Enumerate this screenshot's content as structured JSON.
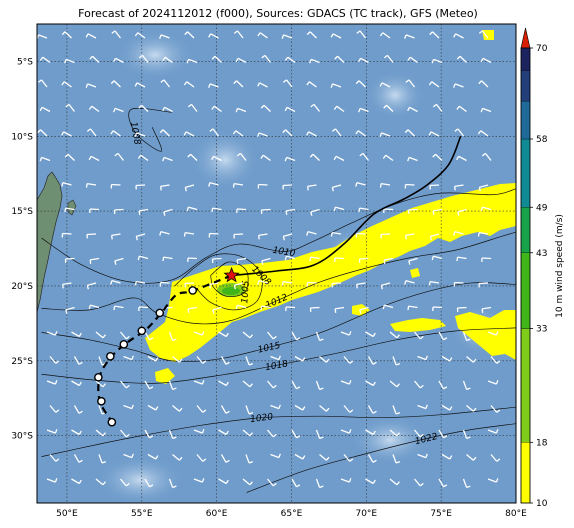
{
  "title": "Forecast of 2024112012 (f000), Sources: GDACS (TC track), GFS (Meteo)",
  "map": {
    "lon_range": [
      48,
      80
    ],
    "lat_range": [
      -34.5,
      -2.5
    ],
    "lon_ticks": [
      "50°E",
      "55°E",
      "60°E",
      "65°E",
      "70°E",
      "75°E",
      "80°E"
    ],
    "lat_ticks": [
      "5°S",
      "10°S",
      "15°S",
      "20°S",
      "25°S",
      "30°S"
    ],
    "ocean_color": "#6f9ccb",
    "land_color": "#6f8f72"
  },
  "isobars": [
    {
      "label": "1008",
      "points": [
        [
          57.0,
          -8.4
        ],
        [
          54.3,
          -8.2
        ],
        [
          54.6,
          -9.8
        ],
        [
          56.3,
          -11.0
        ],
        [
          55.7,
          -9.4
        ]
      ]
    },
    {
      "label": "1008",
      "points": [
        [
          57.2,
          -20.0
        ],
        [
          58.5,
          -18.8
        ],
        [
          60.0,
          -17.9
        ],
        [
          61.8,
          -18.1
        ],
        [
          63.0,
          -19.3
        ],
        [
          62.7,
          -21.0
        ],
        [
          61.2,
          -21.6
        ],
        [
          59.6,
          -21.1
        ],
        [
          58.6,
          -20.1
        ]
      ]
    },
    {
      "label": "1005",
      "points": [
        [
          59.6,
          -19.3
        ],
        [
          60.8,
          -18.4
        ],
        [
          62.0,
          -19.0
        ],
        [
          61.9,
          -20.4
        ],
        [
          60.7,
          -20.7
        ],
        [
          59.8,
          -20.1
        ],
        [
          59.6,
          -19.3
        ]
      ]
    },
    {
      "label": "1010",
      "points": [
        [
          48.3,
          -16.8
        ],
        [
          51.0,
          -18.6
        ],
        [
          54.0,
          -19.7
        ],
        [
          57.0,
          -19.6
        ],
        [
          59.3,
          -18.1
        ],
        [
          61.5,
          -17.2
        ],
        [
          64.5,
          -17.7
        ],
        [
          66.5,
          -17.0
        ],
        [
          69.0,
          -15.8
        ],
        [
          72.0,
          -14.5
        ],
        [
          75.0,
          -13.8
        ],
        [
          78.5,
          -13.9
        ],
        [
          80.0,
          -13.5
        ]
      ]
    },
    {
      "label": "1012",
      "points": [
        [
          48.3,
          -21.5
        ],
        [
          51.5,
          -21.6
        ],
        [
          54.5,
          -20.8
        ],
        [
          56.0,
          -21.8
        ],
        [
          58.5,
          -22.5
        ],
        [
          61.0,
          -22.3
        ],
        [
          64.0,
          -21.0
        ],
        [
          67.0,
          -19.7
        ],
        [
          70.0,
          -18.8
        ],
        [
          73.0,
          -18.1
        ],
        [
          76.0,
          -17.6
        ],
        [
          79.0,
          -16.7
        ],
        [
          80.0,
          -16.4
        ]
      ]
    },
    {
      "label": "1015",
      "points": [
        [
          48.3,
          -23.1
        ],
        [
          51.5,
          -23.6
        ],
        [
          54.5,
          -24.3
        ],
        [
          57.0,
          -25.0
        ],
        [
          60.0,
          -24.9
        ],
        [
          63.5,
          -24.1
        ],
        [
          67.0,
          -23.1
        ],
        [
          71.0,
          -21.4
        ],
        [
          74.0,
          -20.4
        ],
        [
          77.0,
          -19.8
        ],
        [
          80.0,
          -19.9
        ]
      ]
    },
    {
      "label": "1018",
      "points": [
        [
          48.3,
          -25.9
        ],
        [
          52.0,
          -26.3
        ],
        [
          56.0,
          -26.5
        ],
        [
          60.0,
          -26.0
        ],
        [
          64.0,
          -25.3
        ],
        [
          68.0,
          -24.5
        ],
        [
          72.0,
          -23.6
        ],
        [
          76.0,
          -23.0
        ],
        [
          80.0,
          -22.8
        ]
      ]
    },
    {
      "label": "1020",
      "points": [
        [
          48.3,
          -31.4
        ],
        [
          52.0,
          -30.6
        ],
        [
          55.0,
          -30.0
        ],
        [
          59.0,
          -29.3
        ],
        [
          63.0,
          -28.8
        ],
        [
          67.0,
          -28.7
        ],
        [
          71.0,
          -28.8
        ],
        [
          75.0,
          -28.6
        ],
        [
          80.0,
          -28.1
        ]
      ]
    },
    {
      "label": "1022",
      "points": [
        [
          62.0,
          -33.8
        ],
        [
          66.0,
          -32.3
        ],
        [
          70.0,
          -31.2
        ],
        [
          74.0,
          -30.2
        ],
        [
          77.0,
          -29.6
        ],
        [
          80.0,
          -29.2
        ]
      ]
    }
  ],
  "track": {
    "future": [
      [
        61.0,
        -19.3
      ],
      [
        60.0,
        -19.7
      ],
      [
        59.0,
        -20.1
      ],
      [
        58.2,
        -20.4
      ],
      [
        57.3,
        -20.6
      ],
      [
        56.3,
        -21.8
      ],
      [
        55.3,
        -22.9
      ],
      [
        54.0,
        -23.8
      ],
      [
        53.0,
        -24.7
      ],
      [
        52.2,
        -26.0
      ],
      [
        52.2,
        -27.7
      ],
      [
        53.1,
        -29.2
      ]
    ],
    "past": [
      [
        61.0,
        -19.3
      ],
      [
        64.0,
        -19.0
      ],
      [
        66.5,
        -18.6
      ],
      [
        68.5,
        -17.2
      ],
      [
        70.5,
        -15.2
      ],
      [
        72.5,
        -14.2
      ],
      [
        74.0,
        -13.3
      ],
      [
        75.5,
        -11.9
      ],
      [
        76.3,
        -10.0
      ]
    ],
    "points": [
      [
        58.4,
        -20.3
      ],
      [
        56.2,
        -21.8
      ],
      [
        55.0,
        -23.0
      ],
      [
        53.8,
        -23.9
      ],
      [
        52.9,
        -24.7
      ],
      [
        52.1,
        -26.1
      ],
      [
        52.3,
        -27.7
      ],
      [
        53.0,
        -29.1
      ]
    ],
    "storm_center": [
      61.0,
      -19.3
    ]
  },
  "colorbar": {
    "label": "10 m wind speed (m/s)",
    "ticks": [
      "10",
      "18",
      "33",
      "43",
      "49",
      "58",
      "70"
    ],
    "colors": [
      "#ffff00",
      "#ffff00",
      "#7fcc1a",
      "#3fb51a",
      "#18a24a",
      "#108b96",
      "#1f6a99",
      "#223f7a",
      "#1c2460",
      "#d81e05"
    ]
  }
}
